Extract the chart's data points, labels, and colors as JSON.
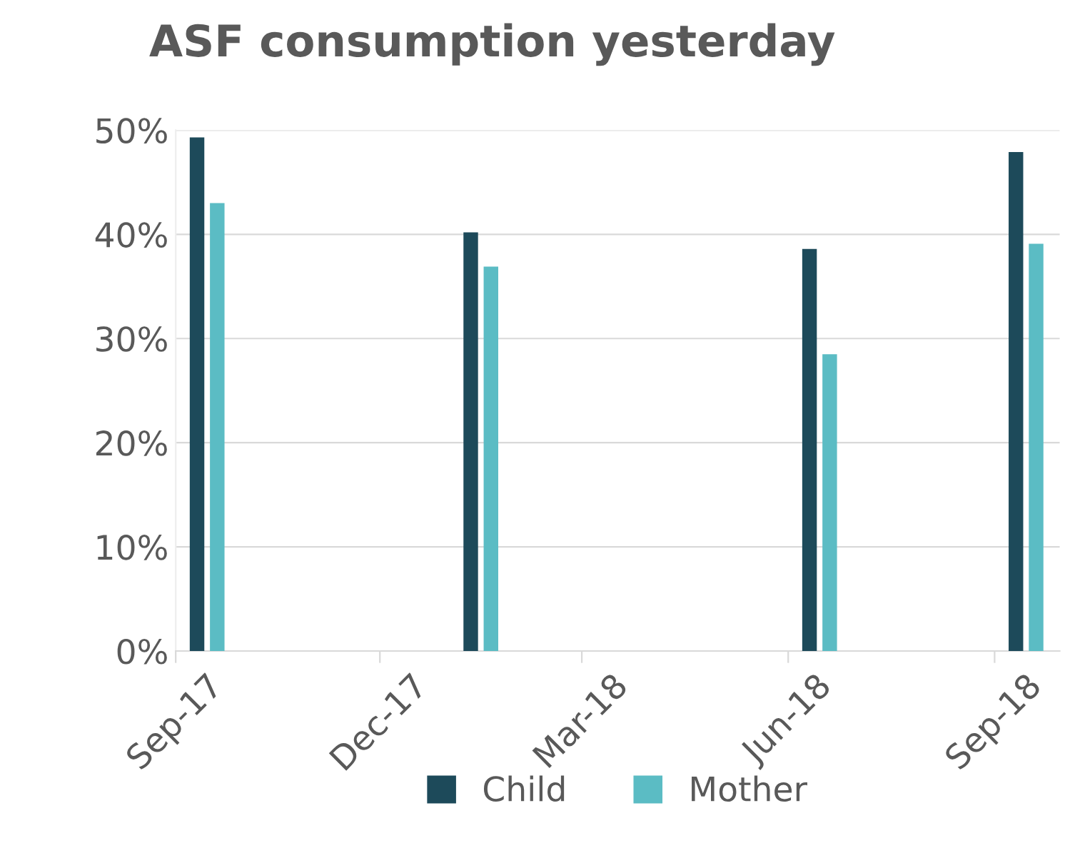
{
  "chart_data": {
    "type": "bar",
    "title": "ASF consumption yesterday",
    "x": [
      "2017-09-15",
      "2018-01-15",
      "2018-06-15",
      "2018-09-15"
    ],
    "series": [
      {
        "name": "Child",
        "color": "#1d4a5a",
        "values": [
          49.3,
          40.2,
          38.6,
          47.9
        ]
      },
      {
        "name": "Mother",
        "color": "#5bbcc4",
        "values": [
          43.0,
          36.9,
          28.5,
          39.1
        ]
      }
    ],
    "xlim": [
      "2017-09-01",
      "2018-09-30"
    ],
    "xticks": [
      {
        "value": "2017-09-01",
        "label": "Sep-17"
      },
      {
        "value": "2017-12-01",
        "label": "Dec-17"
      },
      {
        "value": "2018-03-01",
        "label": "Mar-18"
      },
      {
        "value": "2018-06-01",
        "label": "Jun-18"
      },
      {
        "value": "2018-09-01",
        "label": "Sep-18"
      }
    ],
    "ylim": [
      0,
      50
    ],
    "yticks": [
      {
        "value": 0,
        "label": "0%"
      },
      {
        "value": 10,
        "label": "10%"
      },
      {
        "value": 20,
        "label": "20%"
      },
      {
        "value": 30,
        "label": "30%"
      },
      {
        "value": 40,
        "label": "40%"
      },
      {
        "value": 50,
        "label": "50%"
      }
    ],
    "grid": "y",
    "legend": "bottom"
  }
}
